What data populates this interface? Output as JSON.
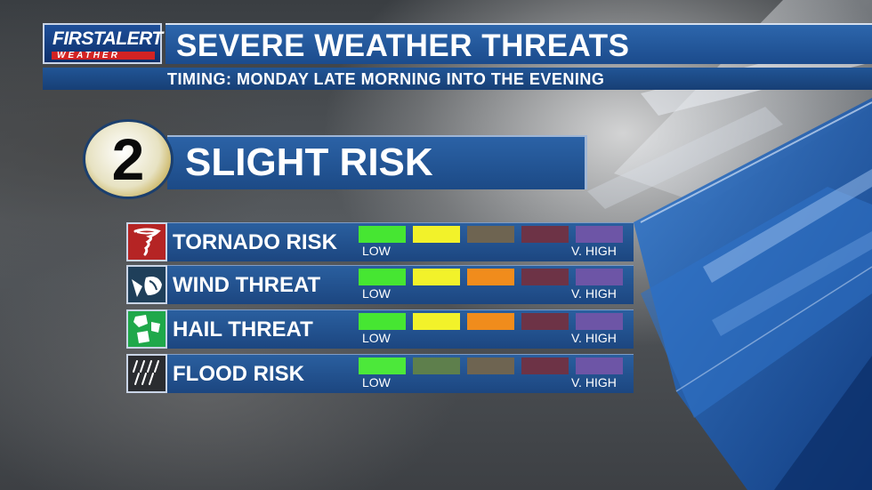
{
  "header": {
    "logo_first": "FIRST",
    "logo_alert": "ALERT",
    "logo_weather": "WEATHER",
    "title": "SEVERE WEATHER THREATS",
    "timing": "TIMING: MONDAY LATE MORNING INTO THE EVENING"
  },
  "risk": {
    "level": "2",
    "label": "SLIGHT RISK"
  },
  "threats": [
    {
      "label": "TORNADO RISK",
      "icon": "tornado-icon",
      "icon_bg": "#b52424",
      "low": "LOW",
      "high": "V. HIGH",
      "scale": [
        "#46e632",
        "#f2f22a",
        "#6e6451",
        "#6d3346",
        "#6d55a6"
      ]
    },
    {
      "label": "WIND THREAT",
      "icon": "wind-icon",
      "icon_bg": "#1f3f5a",
      "low": "LOW",
      "high": "V. HIGH",
      "scale": [
        "#46e632",
        "#f2f22a",
        "#f08c1c",
        "#6d3346",
        "#6d55a6"
      ]
    },
    {
      "label": "HAIL THREAT",
      "icon": "hail-icon",
      "icon_bg": "#1fa84a",
      "low": "LOW",
      "high": "V. HIGH",
      "scale": [
        "#46e632",
        "#f2f22a",
        "#f08c1c",
        "#6d3346",
        "#6d55a6"
      ]
    },
    {
      "label": "FLOOD RISK",
      "icon": "rain-icon",
      "icon_bg": "#2a2c30",
      "low": "LOW",
      "high": "V. HIGH",
      "scale": [
        "#4ce83a",
        "#5e7f4c",
        "#6e6451",
        "#6d3346",
        "#6d55a6"
      ]
    }
  ],
  "colors": {
    "header_blue": "#1b4b8c",
    "accent_red": "#d32323"
  }
}
